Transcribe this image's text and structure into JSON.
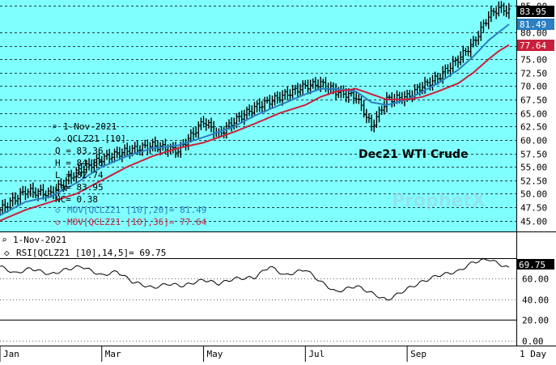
{
  "chart_data": [
    {
      "type": "line",
      "subtype": "ohlc-bar",
      "title": "Dec21 WTI Crude",
      "watermark": "ProphetX",
      "ylim": [
        43,
        86
      ],
      "y_ticks": [
        "45.00",
        "47.50",
        "50.00",
        "52.50",
        "55.00",
        "57.50",
        "60.00",
        "62.50",
        "65.00",
        "67.50",
        "70.00",
        "72.50",
        "75.00",
        "77.50",
        "80.00",
        "85.00"
      ],
      "y_tick_values": [
        45,
        47.5,
        50,
        52.5,
        55,
        57.5,
        60,
        62.5,
        65,
        67.5,
        70,
        72.5,
        75,
        77.5,
        80,
        85
      ],
      "x_labels": [
        "Jan",
        "Mar",
        "May",
        "Jul",
        "Sep"
      ],
      "x_label_months": [
        0,
        2,
        4,
        6,
        8
      ],
      "x_months": [
        0,
        0.5,
        1,
        1.5,
        2,
        2.5,
        3,
        3.5,
        4,
        4.3,
        4.6,
        5,
        5.5,
        6,
        6.3,
        6.6,
        7,
        7.3,
        7.6,
        8,
        8.3,
        8.6,
        9,
        9.3,
        9.6,
        9.8,
        10
      ],
      "close": [
        47.0,
        50.5,
        50.0,
        54.0,
        56.5,
        58.0,
        59.0,
        58.0,
        63.5,
        61.0,
        63.5,
        66.0,
        68.0,
        70.0,
        70.5,
        69.0,
        68.0,
        62.5,
        67.5,
        68.0,
        70.0,
        71.5,
        75.0,
        78.0,
        83.0,
        84.5,
        83.95
      ],
      "series": [
        {
          "name": "MOV[QCLZ21 [10],20]",
          "color": "#2b7fc2",
          "values": [
            46.0,
            48.5,
            49.5,
            52.0,
            55.0,
            57.0,
            58.5,
            59.0,
            60.5,
            61.5,
            62.5,
            64.5,
            66.5,
            68.5,
            69.5,
            69.5,
            69.0,
            67.0,
            66.5,
            67.5,
            69.0,
            70.5,
            73.0,
            75.5,
            78.5,
            80.0,
            81.49
          ]
        },
        {
          "name": "MOV[QCLZ21 [10],36]",
          "color": "#c8203c",
          "values": [
            45.0,
            47.0,
            48.5,
            50.0,
            52.5,
            55.0,
            57.0,
            58.5,
            59.5,
            60.5,
            61.5,
            63.0,
            65.0,
            66.5,
            68.0,
            69.0,
            69.5,
            68.5,
            67.5,
            67.5,
            68.0,
            69.0,
            70.5,
            72.5,
            75.0,
            76.5,
            77.64
          ]
        }
      ],
      "legend": {
        "date": "1-Nov-2021",
        "symbol": "QCLZ21 [10]",
        "rows": [
          {
            "label": "O",
            "value": "83.36"
          },
          {
            "label": "H",
            "value": "84.88"
          },
          {
            "label": "L",
            "value": "82.74"
          },
          {
            "label": "La",
            "value": "83.95"
          },
          {
            "label": "NC",
            "value": "0.38"
          }
        ],
        "ma20": "MOV[QCLZ21 [10],20]= 81.49",
        "ma36": "MOV[QCLZ21 [10],36]= 77.64"
      },
      "last_values": [
        {
          "text": "83.95",
          "value": 83.95,
          "bg": "#000000",
          "fg": "#ffffff"
        },
        {
          "text": "81.49",
          "value": 81.49,
          "bg": "#2b7fc2",
          "fg": "#ffffff"
        },
        {
          "text": "77.64",
          "value": 77.64,
          "bg": "#c8203c",
          "fg": "#ffffff"
        }
      ]
    },
    {
      "type": "line",
      "title": "RSI[QCLZ21 [10],14,5]",
      "date": "1-Nov-2021",
      "value_label": "RSI[QCLZ21 [10],14,5]= 69.75",
      "ylim": [
        -5,
        105
      ],
      "y_ticks": [
        "0.00",
        "20.00",
        "40.00",
        "60.00"
      ],
      "y_tick_values": [
        0,
        20,
        40,
        60
      ],
      "ref_lines": [
        80,
        20
      ],
      "last_value": "69.75",
      "x_months": [
        0,
        0.3,
        0.6,
        1,
        1.3,
        1.6,
        2,
        2.3,
        2.6,
        3,
        3.3,
        3.6,
        4,
        4.3,
        4.6,
        5,
        5.3,
        5.6,
        6,
        6.3,
        6.6,
        7,
        7.3,
        7.6,
        8,
        8.3,
        8.6,
        9,
        9.3,
        9.6,
        10
      ],
      "values": [
        72,
        65,
        70,
        64,
        69,
        72,
        63,
        67,
        57,
        51,
        55,
        53,
        59,
        55,
        60,
        61,
        72,
        63,
        69,
        57,
        47,
        53,
        46,
        39,
        50,
        57,
        63,
        67,
        76,
        79,
        70
      ]
    }
  ],
  "footer": {
    "period": "1 Day"
  },
  "colors": {
    "plot_bg": "#80ffff",
    "bars": "#000000",
    "ma20": "#2b7fc2",
    "ma36": "#c8203c",
    "panel_bg": "#ffffff"
  }
}
